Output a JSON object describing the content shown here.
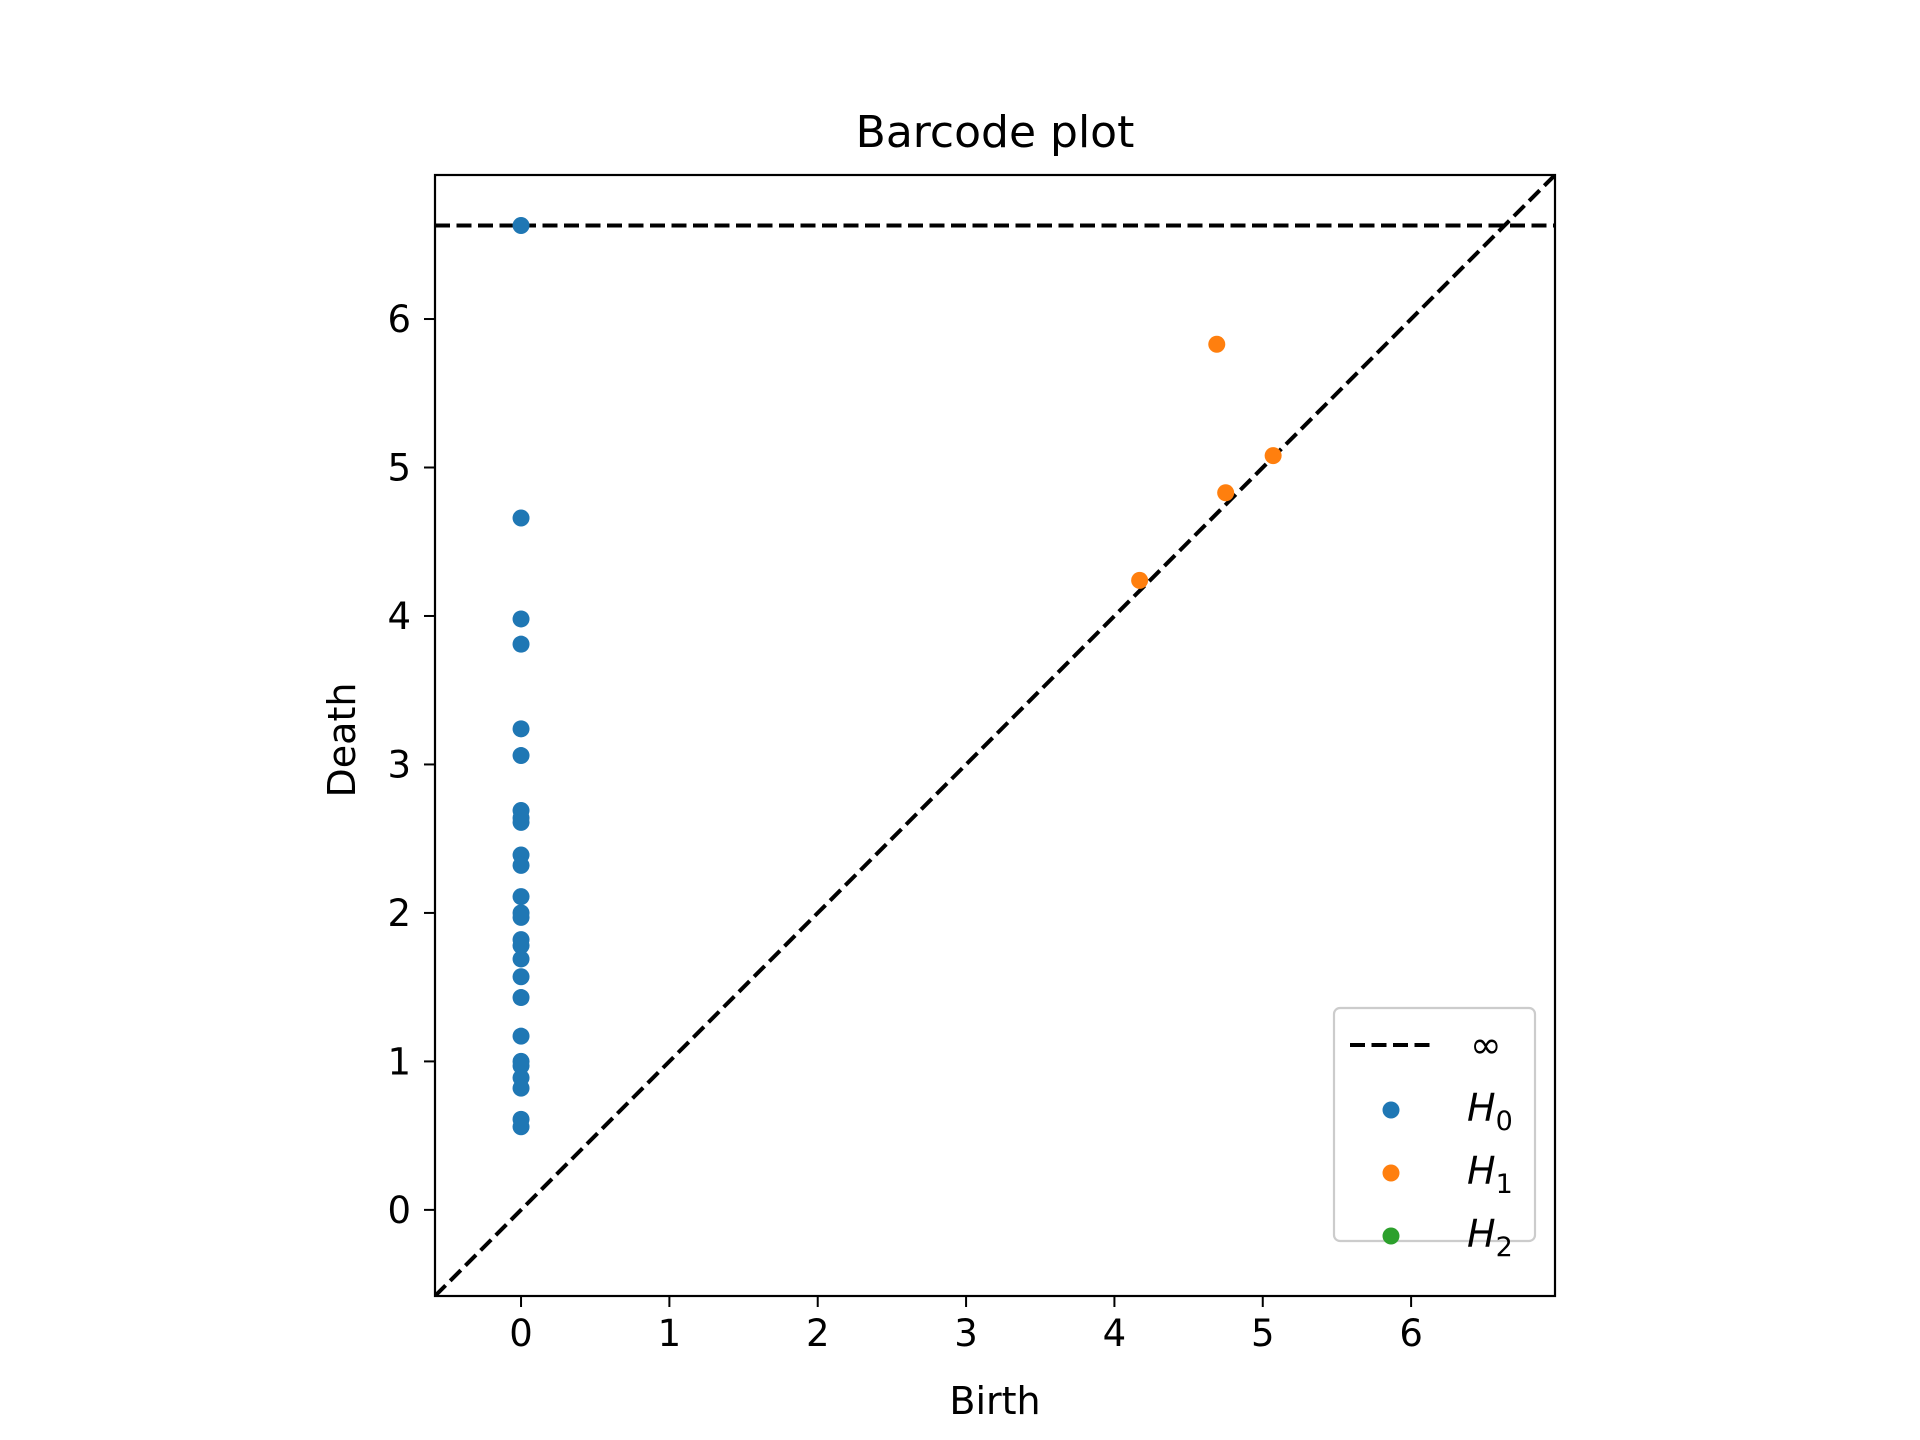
{
  "chart_data": {
    "type": "scatter",
    "title": "Barcode plot",
    "xlabel": "Birth",
    "ylabel": "Death",
    "xlim": [
      -0.58,
      6.97
    ],
    "ylim": [
      -0.58,
      6.97
    ],
    "x_ticks": [
      "0",
      "1",
      "2",
      "3",
      "4",
      "5",
      "6"
    ],
    "y_ticks": [
      "0",
      "1",
      "2",
      "3",
      "4",
      "5",
      "6"
    ],
    "grid": false,
    "legend_position": "lower right",
    "infinity_line": {
      "label": "∞",
      "y": 6.63,
      "style": "dashed",
      "color": "#000000"
    },
    "diagonal": {
      "style": "dashed",
      "color": "#000000"
    },
    "series": [
      {
        "name": "H",
        "subscript": "0",
        "color": "#1f77b4",
        "points": [
          [
            0,
            6.63
          ],
          [
            0,
            4.66
          ],
          [
            0,
            3.98
          ],
          [
            0,
            3.81
          ],
          [
            0,
            3.24
          ],
          [
            0,
            3.06
          ],
          [
            0,
            2.69
          ],
          [
            0,
            2.64
          ],
          [
            0,
            2.61
          ],
          [
            0,
            2.39
          ],
          [
            0,
            2.32
          ],
          [
            0,
            2.11
          ],
          [
            0,
            2.0
          ],
          [
            0,
            1.97
          ],
          [
            0,
            1.82
          ],
          [
            0,
            1.78
          ],
          [
            0,
            1.69
          ],
          [
            0,
            1.57
          ],
          [
            0,
            1.43
          ],
          [
            0,
            1.17
          ],
          [
            0,
            1.0
          ],
          [
            0,
            0.97
          ],
          [
            0,
            0.89
          ],
          [
            0,
            0.82
          ],
          [
            0,
            0.61
          ],
          [
            0,
            0.56
          ]
        ]
      },
      {
        "name": "H",
        "subscript": "1",
        "color": "#ff7f0e",
        "points": [
          [
            4.69,
            5.83
          ],
          [
            5.07,
            5.08
          ],
          [
            4.75,
            4.83
          ],
          [
            4.17,
            4.24
          ]
        ]
      },
      {
        "name": "H",
        "subscript": "2",
        "color": "#2ca02c",
        "points": []
      }
    ]
  }
}
